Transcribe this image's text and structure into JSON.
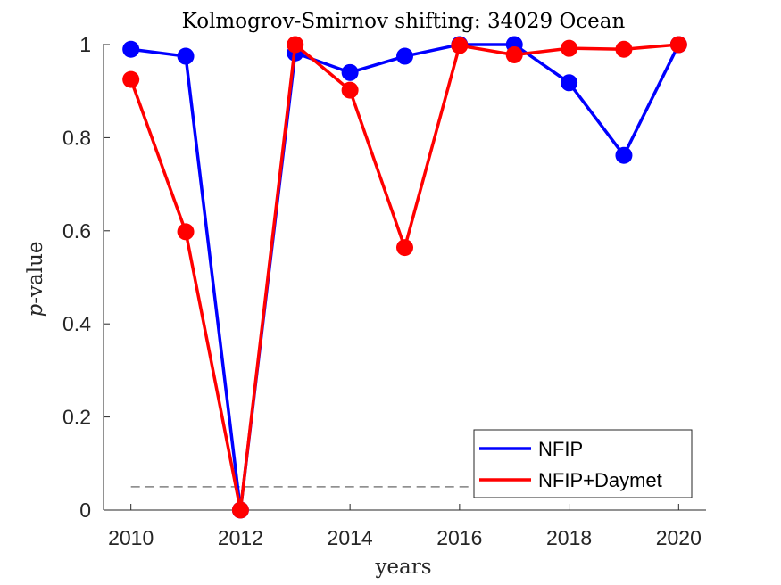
{
  "chart_data": {
    "type": "line",
    "title": "Kolmogrov-Smirnov shifting: 34029 Ocean",
    "xlabel": "years",
    "ylabel_italic": "p",
    "ylabel_rest": "-value",
    "xlim": [
      2009.5,
      2020.5
    ],
    "ylim": [
      0,
      1
    ],
    "xticks": [
      2010,
      2012,
      2014,
      2016,
      2018,
      2020
    ],
    "xtick_labels": [
      "2010",
      "2012",
      "2014",
      "2016",
      "2018",
      "2020"
    ],
    "yticks": [
      0,
      0.2,
      0.4,
      0.6,
      0.8,
      1
    ],
    "ytick_labels": [
      "0",
      "0.2",
      "0.4",
      "0.6",
      "0.8",
      "1"
    ],
    "x": [
      2010,
      2011,
      2012,
      2013,
      2014,
      2015,
      2016,
      2017,
      2018,
      2019,
      2020
    ],
    "series": [
      {
        "name": "NFIP",
        "color": "#0000ff",
        "values": [
          0.99,
          0.975,
          0.0,
          0.982,
          0.94,
          0.975,
          1.0,
          1.0,
          0.918,
          0.762,
          1.0
        ]
      },
      {
        "name": "NFIP+Daymet",
        "color": "#ff0000",
        "values": [
          0.925,
          0.598,
          0.0,
          1.0,
          0.902,
          0.564,
          0.998,
          0.978,
          0.992,
          0.99,
          1.0
        ]
      }
    ],
    "threshold": {
      "value": 0.05,
      "style": "dashed",
      "color": "#808080"
    },
    "grid": false,
    "legend_position": "bottom-right",
    "box": "open (left and bottom axes only)"
  }
}
